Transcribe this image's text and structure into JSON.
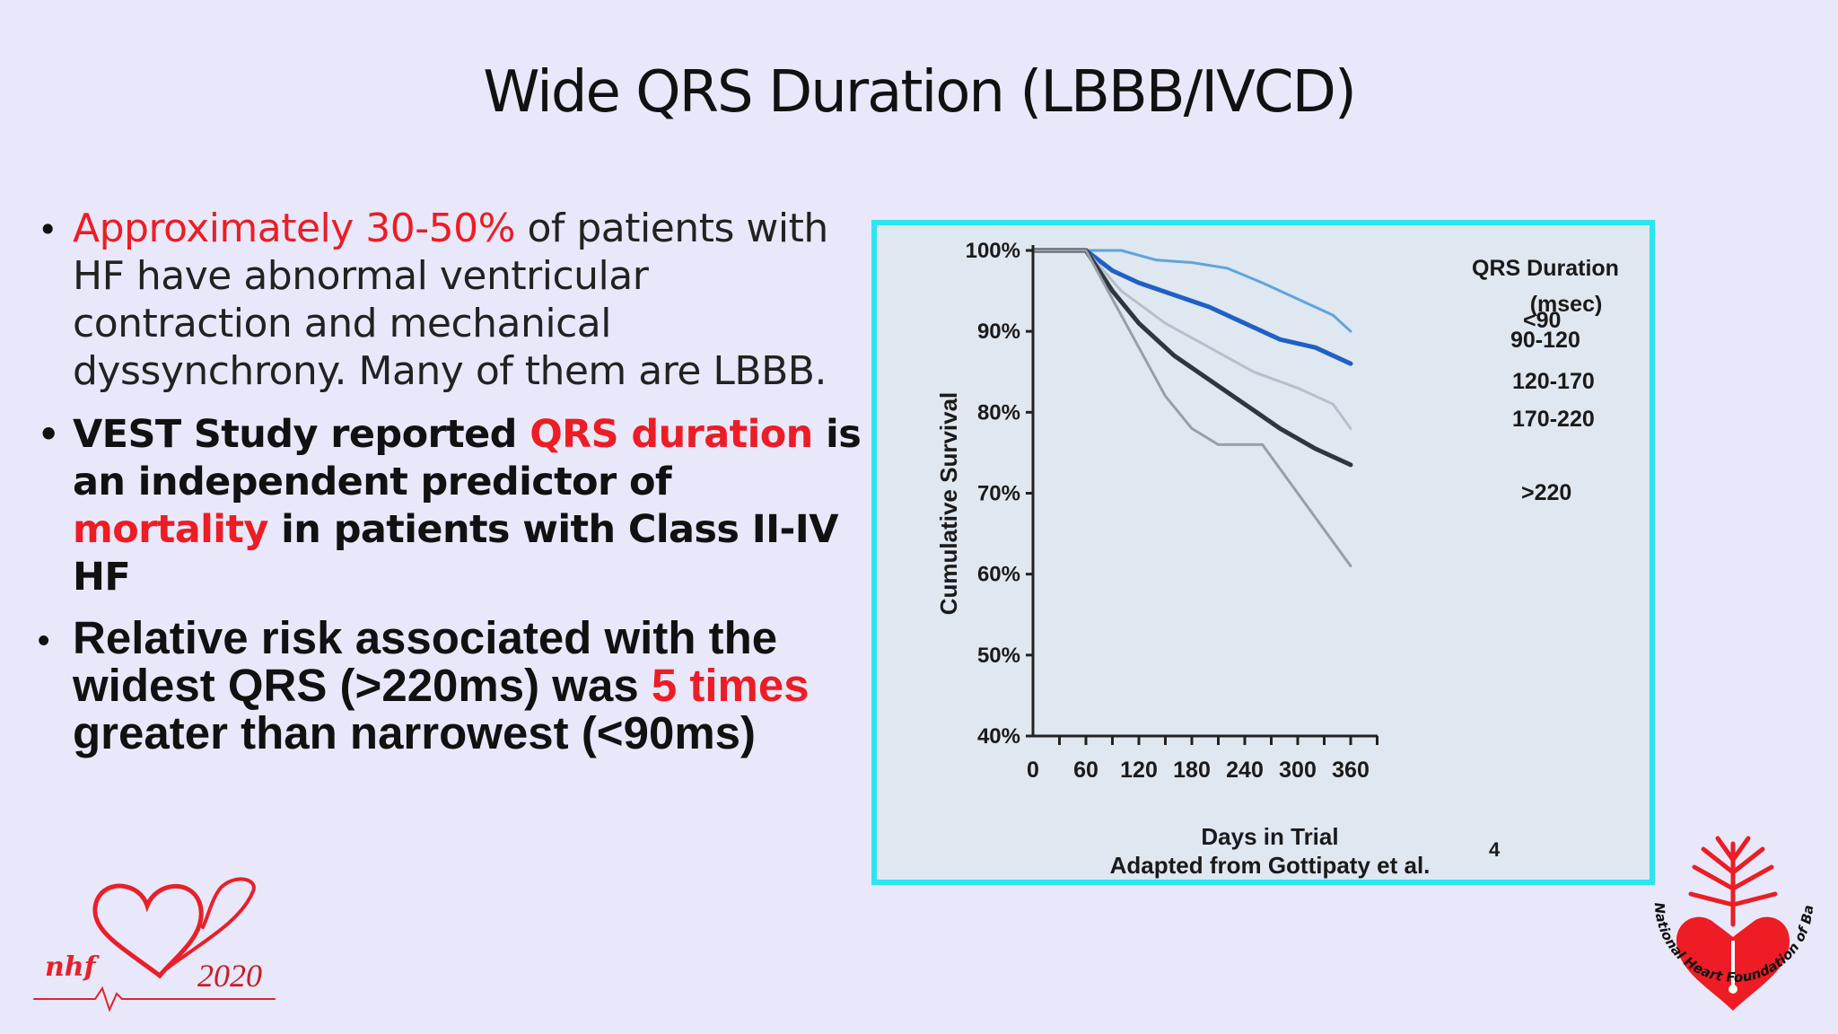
{
  "slide": {
    "title": "Wide QRS Duration (LBBB/IVCD)",
    "bullet_symbol": "•",
    "bullets": [
      {
        "parts": [
          {
            "text": "Approximately 30-50%",
            "color": "#ee1c24"
          },
          {
            "text": " of patients with HF have abnormal ventricular contraction and mechanical dyssynchrony. Many of them are LBBB.",
            "color": "#222222"
          }
        ]
      },
      {
        "parts": [
          {
            "text": "VEST Study reported ",
            "color": "#111111"
          },
          {
            "text": "QRS duration",
            "color": "#ee1c24"
          },
          {
            "text": " is an independent predictor of ",
            "color": "#111111"
          },
          {
            "text": "mortality",
            "color": "#ee1c24"
          },
          {
            "text": " in patients with Class II-IV HF",
            "color": "#111111"
          }
        ]
      },
      {
        "parts": [
          {
            "text": "Relative risk associated with the widest QRS (>220ms) was ",
            "color": "#111111"
          },
          {
            "text": "5 times",
            "color": "#ee1c24"
          },
          {
            "text": " greater than narrowest (<90ms)",
            "color": "#111111"
          }
        ]
      }
    ]
  },
  "logos": {
    "left": {
      "text": "nhf",
      "year": "2020",
      "icon": "heart-ecg-icon",
      "color": "#e8202a"
    },
    "right": {
      "text": "National Heart Foundation of Bangladesh",
      "icon": "heart-tree-icon",
      "color": "#ee1c24"
    }
  },
  "chart_data": {
    "type": "line",
    "title": "",
    "xlabel": "Days in Trial",
    "ylabel": "Cumulative Survival",
    "caption": "Adapted from Gottipaty et al.",
    "caption_ref": "4",
    "xlim": [
      0,
      360
    ],
    "ylim": [
      40,
      100
    ],
    "x_ticks": [
      0,
      60,
      120,
      180,
      240,
      300,
      360
    ],
    "x_minor_step": 30,
    "y_ticks": [
      40,
      50,
      60,
      70,
      80,
      90,
      100
    ],
    "y_tick_labels": [
      "40%",
      "50%",
      "60%",
      "70%",
      "80%",
      "90%",
      "100%"
    ],
    "legend_title": "QRS Duration",
    "legend_subtitle": "(msec)",
    "series": [
      {
        "name": "<90",
        "color": "#5fa4dd",
        "width": 3,
        "x": [
          0,
          30,
          60,
          100,
          140,
          180,
          220,
          260,
          300,
          340,
          360
        ],
        "y": [
          100,
          100,
          100,
          100,
          98.8,
          98.5,
          97.8,
          96,
          94,
          92,
          90
        ]
      },
      {
        "name": "90-120",
        "color": "#1f60c8",
        "width": 5,
        "x": [
          0,
          30,
          60,
          90,
          120,
          160,
          200,
          240,
          280,
          320,
          360
        ],
        "y": [
          100,
          100,
          100,
          97.5,
          96,
          94.5,
          93,
          91,
          89,
          88,
          86
        ]
      },
      {
        "name": "120-170",
        "color": "#b7bfca",
        "width": 3,
        "x": [
          0,
          30,
          60,
          100,
          150,
          200,
          250,
          300,
          340,
          360
        ],
        "y": [
          100,
          100,
          100,
          95,
          91,
          88,
          85,
          83,
          81,
          78
        ]
      },
      {
        "name": "170-220",
        "color": "#2f3640",
        "width": 5,
        "x": [
          0,
          30,
          60,
          90,
          120,
          160,
          200,
          240,
          280,
          320,
          360
        ],
        "y": [
          100,
          100,
          100,
          95,
          91,
          87,
          84,
          81,
          78,
          75.5,
          73.5
        ]
      },
      {
        "name": ">220",
        "color": "#999ea6",
        "width": 3,
        "x": [
          0,
          30,
          60,
          90,
          120,
          150,
          180,
          210,
          230,
          260,
          300,
          340,
          360
        ],
        "y": [
          100,
          100,
          100,
          94,
          88,
          82,
          78,
          76,
          76,
          76,
          70,
          64,
          61
        ]
      }
    ]
  }
}
